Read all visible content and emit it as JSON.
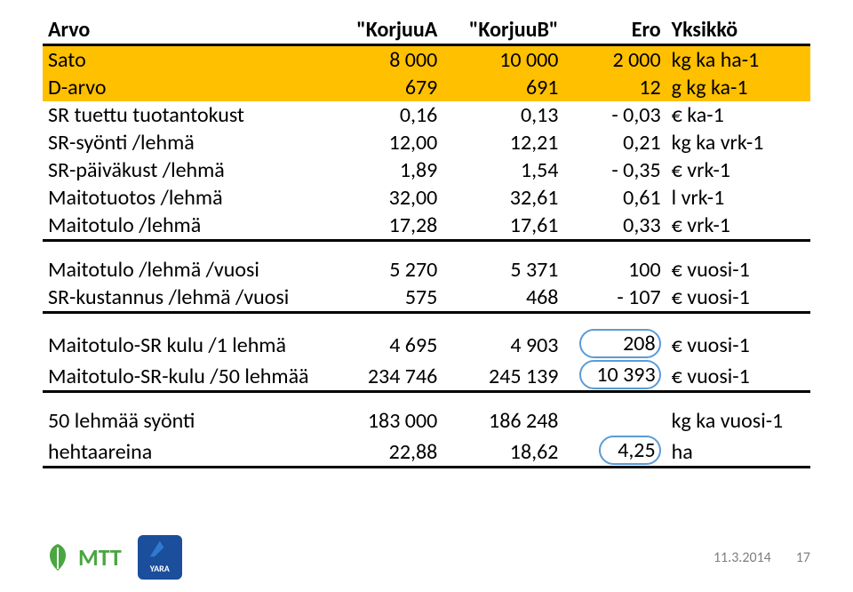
{
  "colors": {
    "highlight": "#ffc000",
    "callout_border": "#5b9bd5",
    "rule": "#000000",
    "meta": "#7f7f7f",
    "mtt": "#4aa641",
    "yara": "#1b4e9b"
  },
  "typography": {
    "base_fontsize_pt": 18,
    "font_family": "Calibri"
  },
  "table": {
    "columns": [
      "Arvo",
      "\"KorjuuA",
      "\"KorjuuB\"",
      "Ero",
      "Yksikkö"
    ],
    "sections": [
      {
        "rows": [
          {
            "label": "Sato",
            "a": "8 000",
            "b": "10 000",
            "ero": "2 000",
            "yks": "kg ka ha-1",
            "highlight": true
          },
          {
            "label": "D-arvo",
            "a": "679",
            "b": "691",
            "ero": "12",
            "yks": "g kg ka-1",
            "highlight": true
          },
          {
            "label": "SR tuettu tuotantokust",
            "a": "0,16",
            "b": "0,13",
            "ero": "- 0,03",
            "yks": "€ ka-1"
          },
          {
            "label": "SR-syönti /lehmä",
            "a": "12,00",
            "b": "12,21",
            "ero": "0,21",
            "yks": "kg ka vrk-1"
          },
          {
            "label": "SR-päiväkust /lehmä",
            "a": "1,89",
            "b": "1,54",
            "ero": "- 0,35",
            "yks": "€ vrk-1"
          },
          {
            "label": "Maitotuotos /lehmä",
            "a": "32,00",
            "b": "32,61",
            "ero": "0,61",
            "yks": "l vrk-1"
          },
          {
            "label": "Maitotulo /lehmä",
            "a": "17,28",
            "b": "17,61",
            "ero": "0,33",
            "yks": "€ vrk-1"
          }
        ]
      },
      {
        "rows": [
          {
            "label": "Maitotulo /lehmä /vuosi",
            "a": "5 270",
            "b": "5 371",
            "ero": "100",
            "yks": "€ vuosi-1"
          },
          {
            "label": "SR-kustannus /lehmä /vuosi",
            "a": "575",
            "b": "468",
            "ero": "- 107",
            "yks": "€ vuosi-1"
          }
        ]
      },
      {
        "rows": [
          {
            "label": "Maitotulo-SR kulu /1 lehmä",
            "a": "4 695",
            "b": "4 903",
            "ero": "208",
            "yks": "€ vuosi-1",
            "callout": true
          },
          {
            "label": "Maitotulo-SR-kulu /50 lehmää",
            "a": "234 746",
            "b": "245 139",
            "ero": "10 393",
            "yks": "€ vuosi-1",
            "callout": true
          }
        ]
      },
      {
        "rows": [
          {
            "label": "50 lehmää syönti",
            "a": "183 000",
            "b": "186 248",
            "ero": "",
            "yks": "kg ka vuosi-1"
          },
          {
            "label": "hehtaareina",
            "a": "22,88",
            "b": "18,62",
            "ero": "4,25",
            "yks": "ha",
            "callout2": true
          }
        ]
      }
    ]
  },
  "footer": {
    "date": "11.3.2014",
    "page": "17",
    "mtt_label": "MTT",
    "yara_label": "YARA"
  }
}
